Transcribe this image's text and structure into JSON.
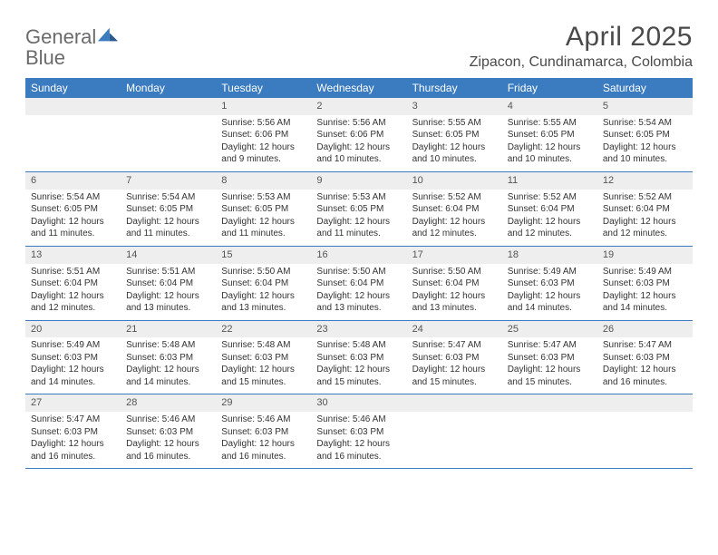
{
  "brand": {
    "part1": "General",
    "part2": "Blue"
  },
  "title": "April 2025",
  "location": "Zipacon, Cundinamarca, Colombia",
  "colors": {
    "header_blue": "#3b7bbf",
    "logo_gray": "#6b6b6b",
    "logo_blue": "#3b7bbf",
    "daynum_bg": "#eeeeee",
    "text": "#333333"
  },
  "dow": [
    "Sunday",
    "Monday",
    "Tuesday",
    "Wednesday",
    "Thursday",
    "Friday",
    "Saturday"
  ],
  "weeks": [
    [
      null,
      null,
      {
        "n": "1",
        "sr": "5:56 AM",
        "ss": "6:06 PM",
        "dl": "12 hours and 9 minutes."
      },
      {
        "n": "2",
        "sr": "5:56 AM",
        "ss": "6:06 PM",
        "dl": "12 hours and 10 minutes."
      },
      {
        "n": "3",
        "sr": "5:55 AM",
        "ss": "6:05 PM",
        "dl": "12 hours and 10 minutes."
      },
      {
        "n": "4",
        "sr": "5:55 AM",
        "ss": "6:05 PM",
        "dl": "12 hours and 10 minutes."
      },
      {
        "n": "5",
        "sr": "5:54 AM",
        "ss": "6:05 PM",
        "dl": "12 hours and 10 minutes."
      }
    ],
    [
      {
        "n": "6",
        "sr": "5:54 AM",
        "ss": "6:05 PM",
        "dl": "12 hours and 11 minutes."
      },
      {
        "n": "7",
        "sr": "5:54 AM",
        "ss": "6:05 PM",
        "dl": "12 hours and 11 minutes."
      },
      {
        "n": "8",
        "sr": "5:53 AM",
        "ss": "6:05 PM",
        "dl": "12 hours and 11 minutes."
      },
      {
        "n": "9",
        "sr": "5:53 AM",
        "ss": "6:05 PM",
        "dl": "12 hours and 11 minutes."
      },
      {
        "n": "10",
        "sr": "5:52 AM",
        "ss": "6:04 PM",
        "dl": "12 hours and 12 minutes."
      },
      {
        "n": "11",
        "sr": "5:52 AM",
        "ss": "6:04 PM",
        "dl": "12 hours and 12 minutes."
      },
      {
        "n": "12",
        "sr": "5:52 AM",
        "ss": "6:04 PM",
        "dl": "12 hours and 12 minutes."
      }
    ],
    [
      {
        "n": "13",
        "sr": "5:51 AM",
        "ss": "6:04 PM",
        "dl": "12 hours and 12 minutes."
      },
      {
        "n": "14",
        "sr": "5:51 AM",
        "ss": "6:04 PM",
        "dl": "12 hours and 13 minutes."
      },
      {
        "n": "15",
        "sr": "5:50 AM",
        "ss": "6:04 PM",
        "dl": "12 hours and 13 minutes."
      },
      {
        "n": "16",
        "sr": "5:50 AM",
        "ss": "6:04 PM",
        "dl": "12 hours and 13 minutes."
      },
      {
        "n": "17",
        "sr": "5:50 AM",
        "ss": "6:04 PM",
        "dl": "12 hours and 13 minutes."
      },
      {
        "n": "18",
        "sr": "5:49 AM",
        "ss": "6:03 PM",
        "dl": "12 hours and 14 minutes."
      },
      {
        "n": "19",
        "sr": "5:49 AM",
        "ss": "6:03 PM",
        "dl": "12 hours and 14 minutes."
      }
    ],
    [
      {
        "n": "20",
        "sr": "5:49 AM",
        "ss": "6:03 PM",
        "dl": "12 hours and 14 minutes."
      },
      {
        "n": "21",
        "sr": "5:48 AM",
        "ss": "6:03 PM",
        "dl": "12 hours and 14 minutes."
      },
      {
        "n": "22",
        "sr": "5:48 AM",
        "ss": "6:03 PM",
        "dl": "12 hours and 15 minutes."
      },
      {
        "n": "23",
        "sr": "5:48 AM",
        "ss": "6:03 PM",
        "dl": "12 hours and 15 minutes."
      },
      {
        "n": "24",
        "sr": "5:47 AM",
        "ss": "6:03 PM",
        "dl": "12 hours and 15 minutes."
      },
      {
        "n": "25",
        "sr": "5:47 AM",
        "ss": "6:03 PM",
        "dl": "12 hours and 15 minutes."
      },
      {
        "n": "26",
        "sr": "5:47 AM",
        "ss": "6:03 PM",
        "dl": "12 hours and 16 minutes."
      }
    ],
    [
      {
        "n": "27",
        "sr": "5:47 AM",
        "ss": "6:03 PM",
        "dl": "12 hours and 16 minutes."
      },
      {
        "n": "28",
        "sr": "5:46 AM",
        "ss": "6:03 PM",
        "dl": "12 hours and 16 minutes."
      },
      {
        "n": "29",
        "sr": "5:46 AM",
        "ss": "6:03 PM",
        "dl": "12 hours and 16 minutes."
      },
      {
        "n": "30",
        "sr": "5:46 AM",
        "ss": "6:03 PM",
        "dl": "12 hours and 16 minutes."
      },
      null,
      null,
      null
    ]
  ],
  "labels": {
    "sunrise": "Sunrise: ",
    "sunset": "Sunset: ",
    "daylight": "Daylight: "
  }
}
